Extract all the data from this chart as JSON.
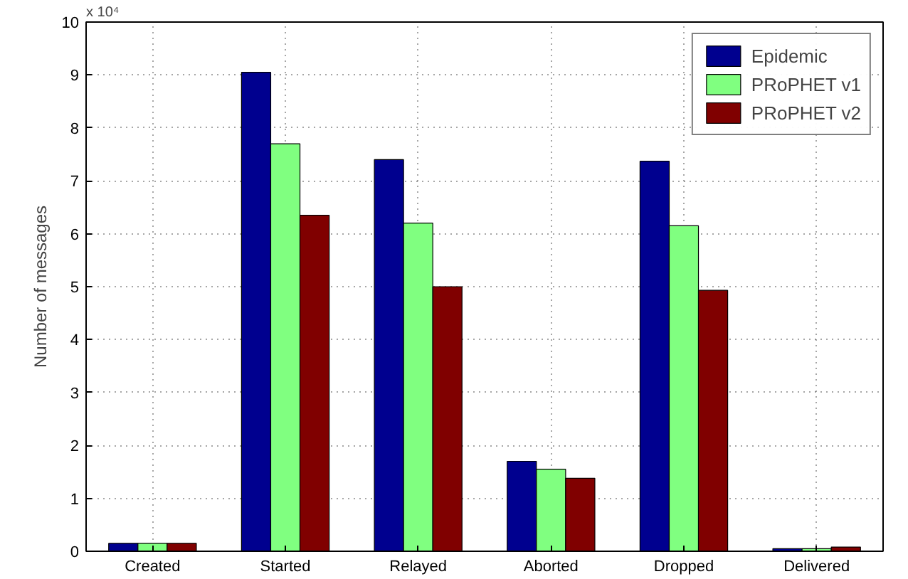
{
  "chart_data": {
    "type": "bar",
    "ylabel": "Number of messages",
    "categories": [
      "Created",
      "Started",
      "Relayed",
      "Aborted",
      "Dropped",
      "Delivered"
    ],
    "series": [
      {
        "name": "Epidemic",
        "color": "#00008f",
        "values": [
          0.15,
          9.05,
          7.4,
          1.7,
          7.37,
          0.05
        ]
      },
      {
        "name": "PRoPHET v1",
        "color": "#80ff80",
        "values": [
          0.15,
          7.7,
          6.2,
          1.55,
          6.15,
          0.05
        ]
      },
      {
        "name": "PRoPHET v2",
        "color": "#800000",
        "values": [
          0.15,
          6.35,
          5.0,
          1.38,
          4.93,
          0.08
        ]
      }
    ],
    "ylim": [
      0,
      10
    ],
    "yticks": [
      0,
      1,
      2,
      3,
      4,
      5,
      6,
      7,
      8,
      9,
      10
    ],
    "annotations": [
      "x 10⁴"
    ],
    "grid": true,
    "legend": "top right"
  }
}
